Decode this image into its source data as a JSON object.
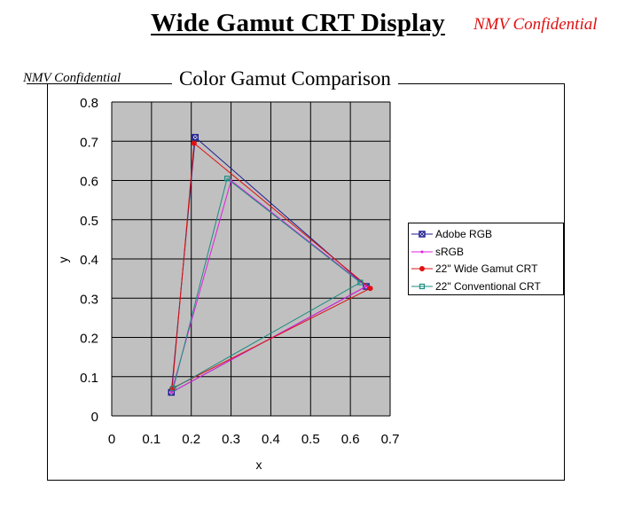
{
  "header": {
    "title": "Wide Gamut CRT Display",
    "confidential_top": "NMV Confidential",
    "confidential_left": "NMV Confidential"
  },
  "colors": {
    "plot_bg": "#c0c0c0",
    "grid": "#000000",
    "adobe_rgb": "#1a1a8c",
    "srgb": "#e020e0",
    "wide_gamut_crt": "#e01010",
    "conventional_crt": "#1a8c80",
    "confidential_red": "#e01010"
  },
  "chart_data": {
    "type": "scatter",
    "title": "Color Gamut Comparison",
    "xlabel": "x",
    "ylabel": "y",
    "xlim": [
      0,
      0.7
    ],
    "ylim": [
      0,
      0.8
    ],
    "x_ticks": [
      "0",
      "0.1",
      "0.2",
      "0.3",
      "0.4",
      "0.5",
      "0.6",
      "0.7"
    ],
    "y_ticks": [
      "0",
      "0.1",
      "0.2",
      "0.3",
      "0.4",
      "0.5",
      "0.6",
      "0.7",
      "0.8"
    ],
    "grid": true,
    "legend_position": "right",
    "series": [
      {
        "name": "Adobe RGB",
        "marker": "square-x",
        "color": "#1a1a8c",
        "points": [
          [
            0.64,
            0.33
          ],
          [
            0.21,
            0.71
          ],
          [
            0.15,
            0.06
          ],
          [
            0.64,
            0.33
          ]
        ]
      },
      {
        "name": "sRGB",
        "marker": "dot-small",
        "color": "#e020e0",
        "points": [
          [
            0.64,
            0.33
          ],
          [
            0.3,
            0.6
          ],
          [
            0.15,
            0.06
          ],
          [
            0.64,
            0.33
          ]
        ]
      },
      {
        "name": "22\" Wide Gamut CRT",
        "marker": "dot",
        "color": "#e01010",
        "points": [
          [
            0.65,
            0.325
          ],
          [
            0.207,
            0.695
          ],
          [
            0.152,
            0.07
          ],
          [
            0.65,
            0.325
          ]
        ]
      },
      {
        "name": "22\" Conventional CRT",
        "marker": "square",
        "color": "#1a8c80",
        "points": [
          [
            0.625,
            0.34
          ],
          [
            0.29,
            0.605
          ],
          [
            0.155,
            0.07
          ],
          [
            0.625,
            0.34
          ]
        ]
      }
    ]
  }
}
